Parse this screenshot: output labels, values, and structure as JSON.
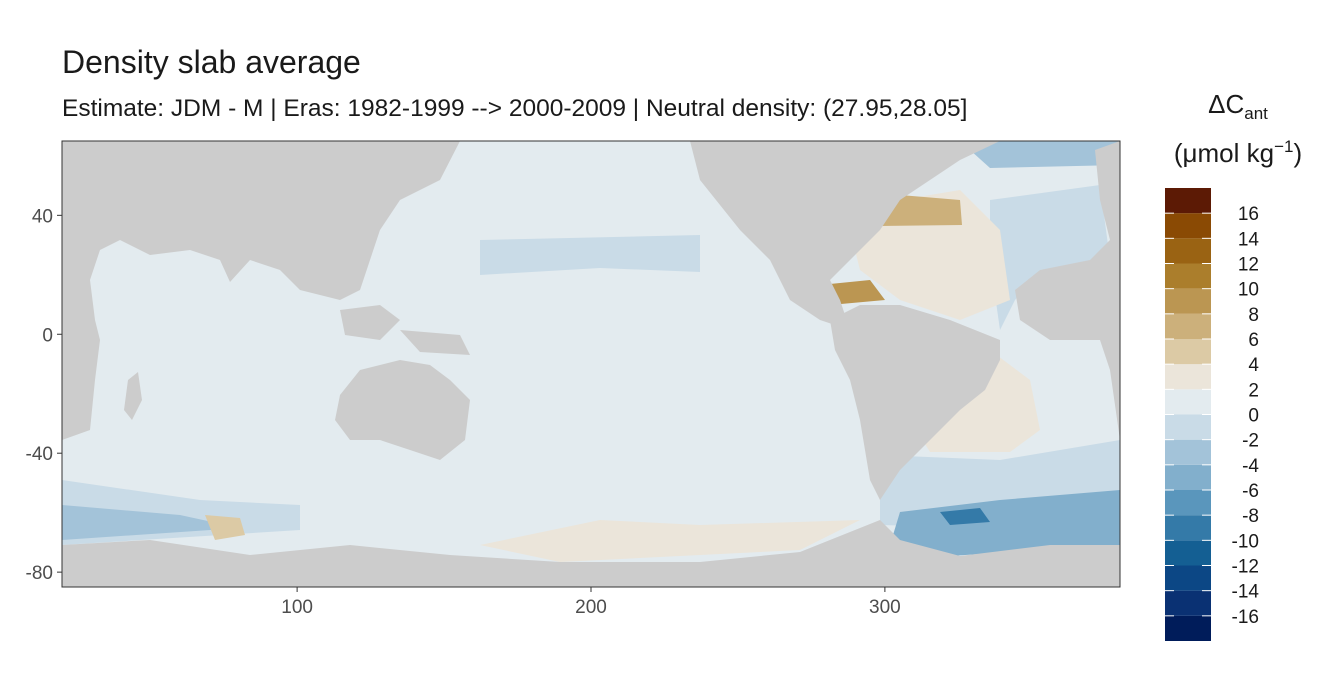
{
  "chart_data": {
    "type": "raster-map",
    "title": "Density slab average",
    "subtitle": "Estimate: JDM - M | Eras: 1982-1999 --> 2000-2009 | Neutral density: (27.95,28.05]",
    "xlim": [
      20,
      380
    ],
    "xticks": [
      100,
      200,
      300
    ],
    "ylim": [
      -85,
      65
    ],
    "yticks": [
      40,
      0,
      -40,
      -80
    ],
    "land_color": "#cccccc",
    "legend": {
      "title": "ΔC",
      "title_subscript": "ant",
      "unit": "(μmol kg",
      "unit_exponent": "−1",
      "unit_end": ")"
    },
    "colorbar": {
      "breaks": [
        -18,
        -16,
        -14,
        -12,
        -10,
        -8,
        -6,
        -4,
        -2,
        0,
        2,
        4,
        6,
        8,
        10,
        12,
        14,
        16,
        18
      ],
      "colors": [
        "#001c5a",
        "#0a3173",
        "#0c4785",
        "#145f93",
        "#347aa8",
        "#5a96bc",
        "#82afcc",
        "#a3c3d9",
        "#c9dbe7",
        "#e3ebef",
        "#ebe5da",
        "#dccaa5",
        "#ccb07b",
        "#bb9652",
        "#ab7e2c",
        "#9a6313",
        "#8a4a04",
        "#5c1a05"
      ],
      "ticks": [
        16,
        14,
        12,
        10,
        8,
        6,
        4,
        2,
        0,
        -2,
        -4,
        -6,
        -8,
        -10,
        -12,
        -14,
        -16
      ]
    }
  }
}
